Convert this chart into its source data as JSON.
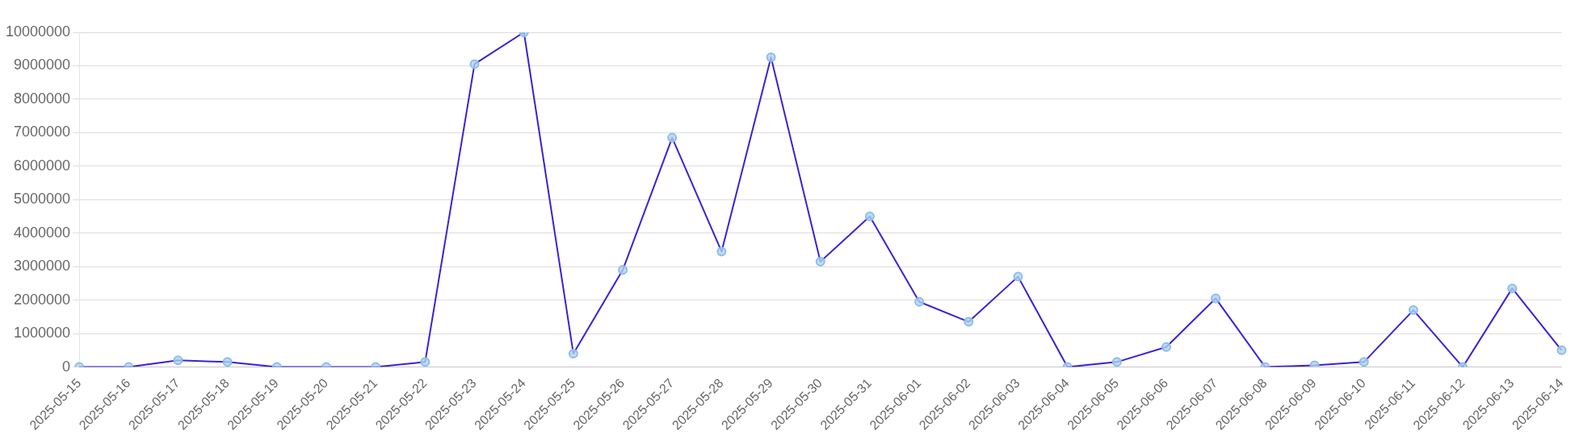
{
  "chart_data": {
    "type": "line",
    "categories": [
      "2025-05-15",
      "2025-05-16",
      "2025-05-17",
      "2025-05-18",
      "2025-05-19",
      "2025-05-20",
      "2025-05-21",
      "2025-05-22",
      "2025-05-23",
      "2025-05-24",
      "2025-05-25",
      "2025-05-26",
      "2025-05-27",
      "2025-05-28",
      "2025-05-29",
      "2025-05-30",
      "2025-05-31",
      "2025-06-01",
      "2025-06-02",
      "2025-06-03",
      "2025-06-04",
      "2025-06-05",
      "2025-06-06",
      "2025-06-07",
      "2025-06-08",
      "2025-06-09",
      "2025-06-10",
      "2025-06-11",
      "2025-06-12",
      "2025-06-13",
      "2025-06-14"
    ],
    "series": [
      {
        "color": "#3a22d4",
        "values": [
          0,
          0,
          200000,
          150000,
          0,
          0,
          0,
          150000,
          9050000,
          10000000,
          400000,
          2900000,
          6850000,
          3450000,
          9250000,
          3150000,
          4500000,
          1950000,
          1350000,
          2700000,
          0,
          150000,
          600000,
          2050000,
          0,
          50000,
          150000,
          1700000,
          0,
          2350000,
          500000
        ]
      }
    ],
    "ylim": [
      0,
      10000000
    ],
    "yticks": [
      0,
      1000000,
      2000000,
      3000000,
      4000000,
      5000000,
      6000000,
      7000000,
      8000000,
      9000000,
      10000000
    ],
    "grid": "y",
    "marker": "circle",
    "line_style": "solid",
    "legend": false
  }
}
